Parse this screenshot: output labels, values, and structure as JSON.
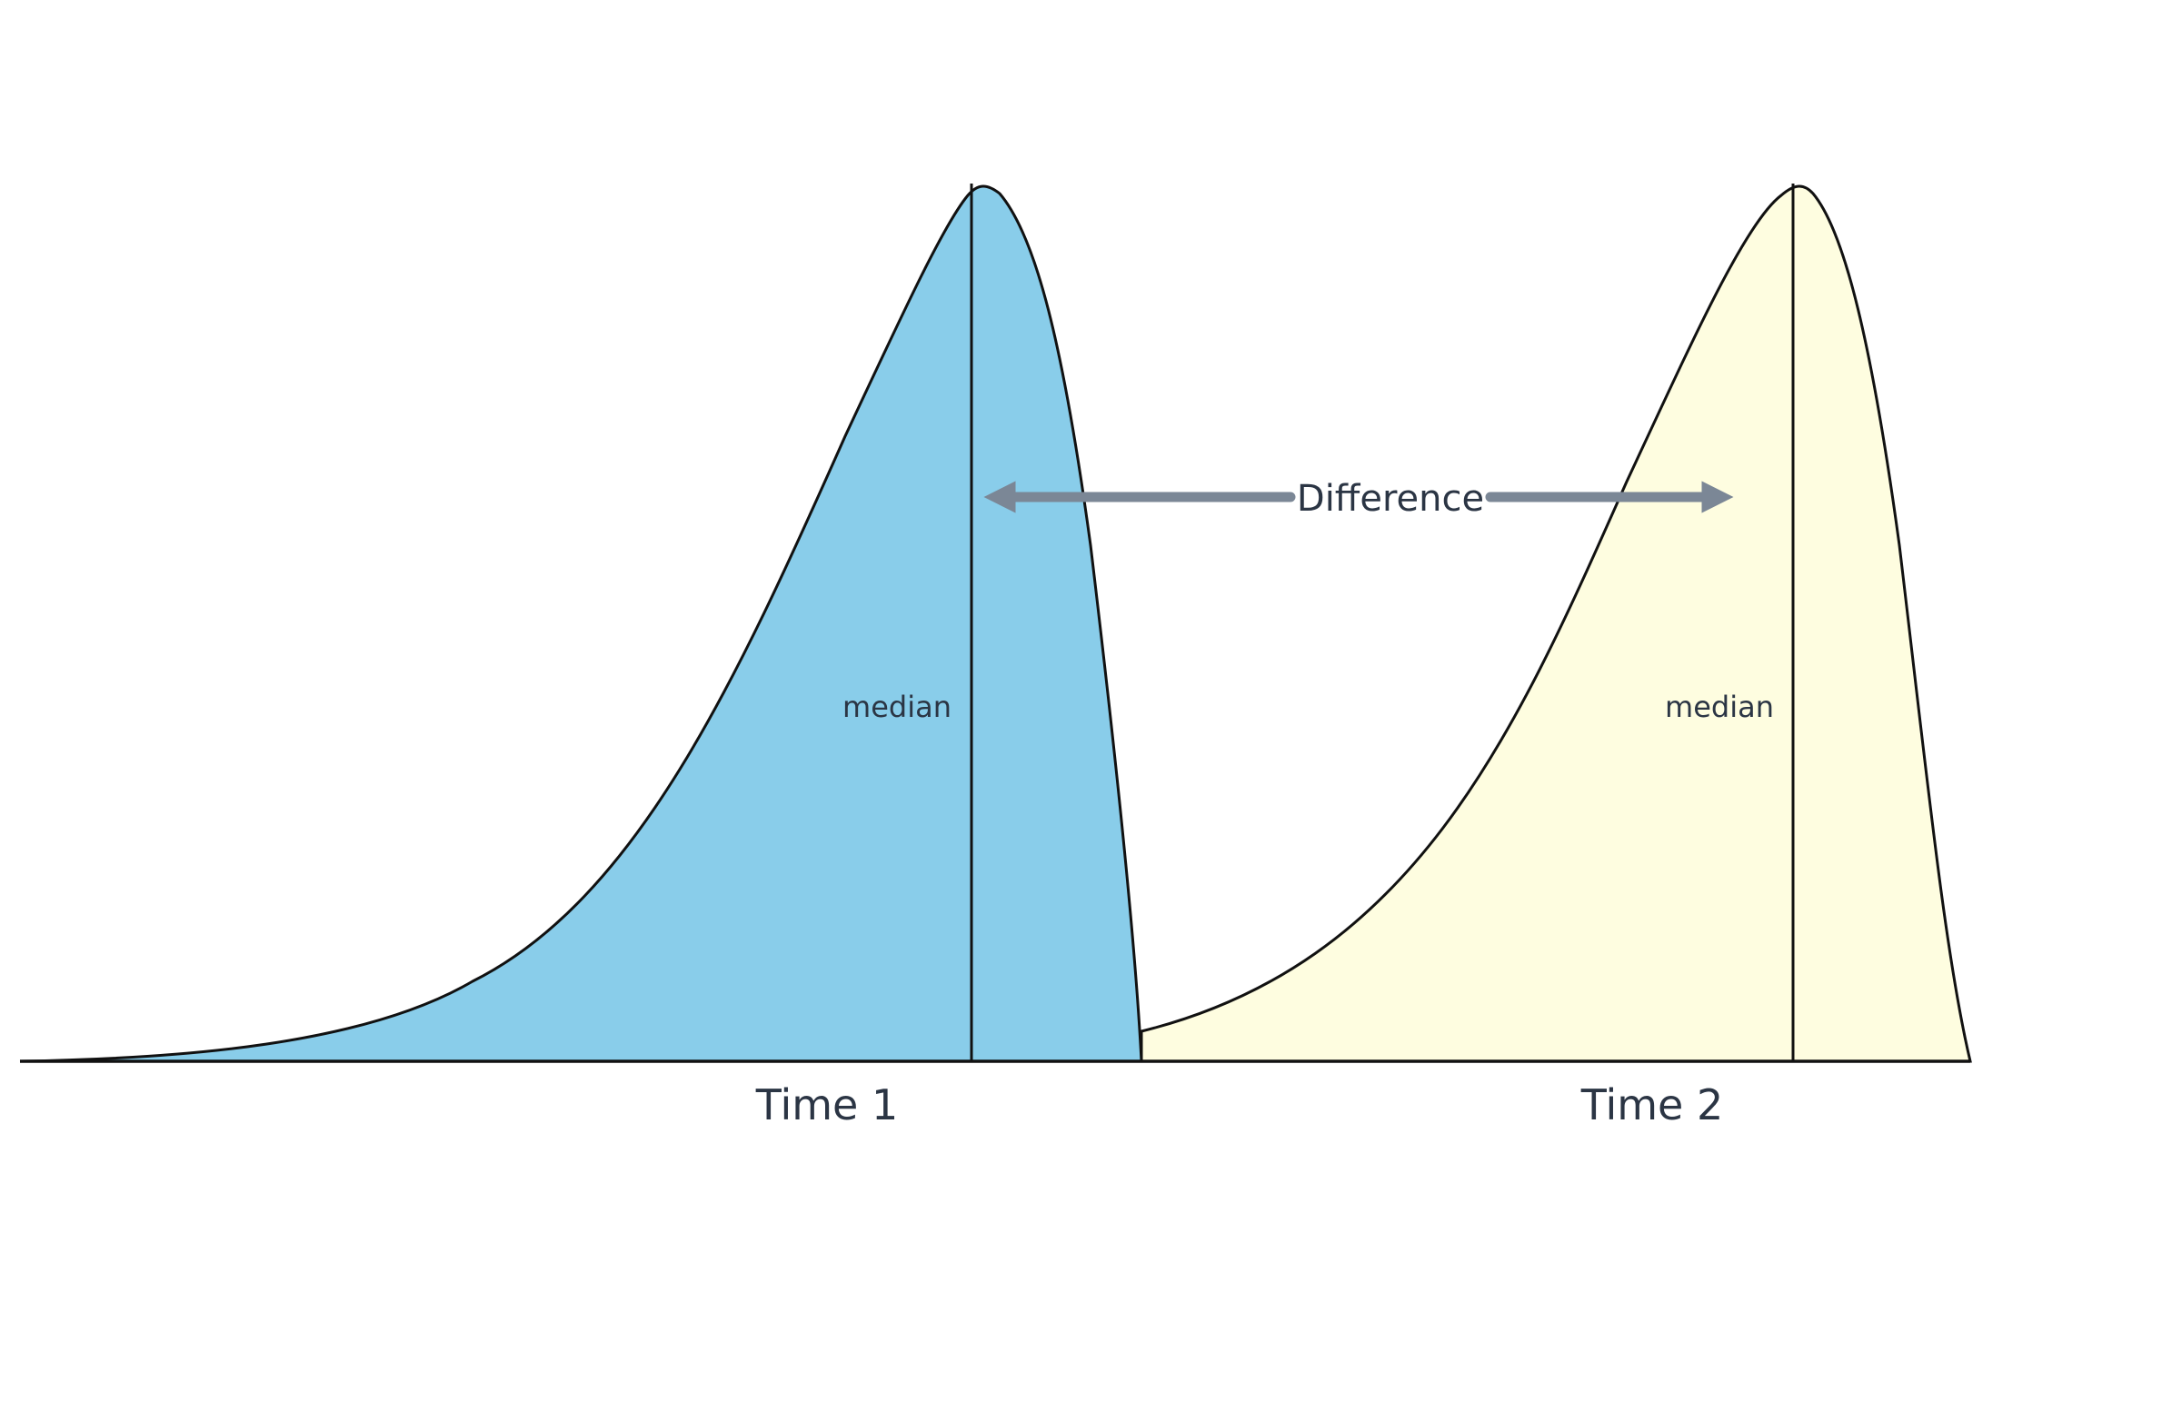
{
  "diagram": {
    "distributions": [
      {
        "id": "time1",
        "label": "Time 1",
        "median_label": "median",
        "fill": "#89cdea"
      },
      {
        "id": "time2",
        "label": "Time 2",
        "median_label": "median",
        "fill": "#fefde0"
      }
    ],
    "difference_label": "Difference",
    "colors": {
      "outline": "#111111",
      "arrow": "#7b8796",
      "text": "#2b3544"
    }
  }
}
